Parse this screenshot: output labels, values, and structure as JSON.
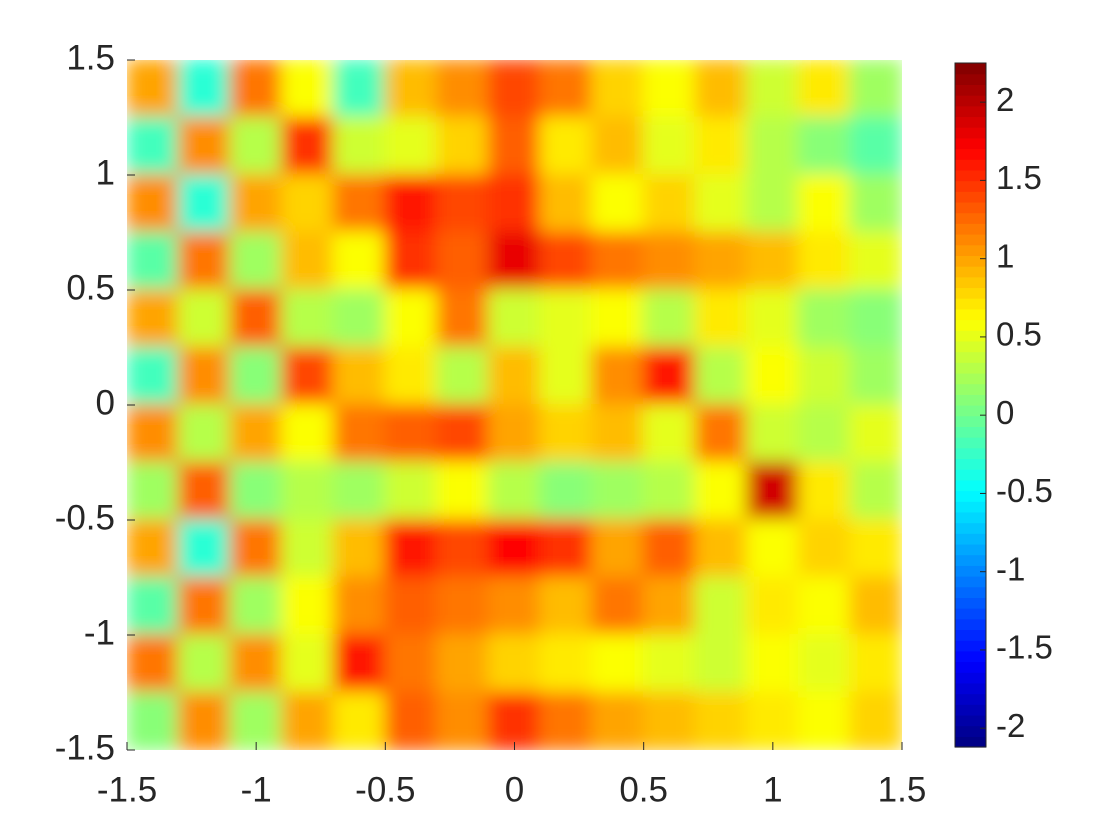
{
  "chart_data": {
    "type": "heatmap",
    "colormap": "jet",
    "x": [
      -1.4,
      -1.2,
      -1.0,
      -0.8,
      -0.6,
      -0.4,
      -0.2,
      0,
      0.2,
      0.4,
      0.6,
      0.8,
      1.0,
      1.2,
      1.4
    ],
    "y": [
      1.375,
      1.125,
      0.875,
      0.625,
      0.375,
      0.125,
      -0.125,
      -0.375,
      -0.625,
      -0.875,
      -1.125,
      -1.375
    ],
    "z": [
      [
        1.0,
        -0.3,
        1.2,
        0.6,
        -0.2,
        0.9,
        1.1,
        1.4,
        1.2,
        0.8,
        0.6,
        0.9,
        0.4,
        0.7,
        0.2
      ],
      [
        -0.2,
        1.1,
        0.3,
        1.5,
        0.4,
        0.5,
        0.8,
        1.3,
        0.7,
        0.9,
        0.5,
        0.7,
        0.3,
        0.1,
        -0.1
      ],
      [
        1.1,
        -0.3,
        1.0,
        0.8,
        1.2,
        1.6,
        1.4,
        1.5,
        0.9,
        0.6,
        0.8,
        0.5,
        0.3,
        0.6,
        0.2
      ],
      [
        -0.1,
        1.2,
        0.2,
        0.9,
        0.6,
        1.5,
        1.3,
        1.8,
        1.4,
        1.2,
        1.1,
        1.0,
        0.9,
        0.7,
        0.5
      ],
      [
        1.0,
        0.4,
        1.3,
        0.3,
        0.2,
        0.6,
        1.2,
        0.4,
        0.5,
        0.6,
        0.3,
        0.7,
        0.5,
        0.2,
        0.1
      ],
      [
        -0.2,
        1.1,
        0.1,
        1.4,
        0.9,
        0.7,
        0.3,
        0.9,
        0.5,
        1.1,
        1.6,
        0.3,
        0.6,
        0.4,
        0.2
      ],
      [
        1.1,
        0.3,
        1.0,
        0.6,
        1.2,
        1.3,
        1.4,
        1.0,
        0.8,
        0.9,
        0.5,
        1.2,
        0.4,
        0.3,
        0.5
      ],
      [
        0.2,
        1.3,
        0.1,
        0.3,
        0.2,
        0.4,
        0.6,
        0.3,
        0.1,
        0.2,
        0.3,
        0.6,
        1.9,
        0.7,
        0.3
      ],
      [
        1.0,
        -0.3,
        1.2,
        0.4,
        0.9,
        1.6,
        1.4,
        1.7,
        1.5,
        1.0,
        1.3,
        0.9,
        0.6,
        0.8,
        0.7
      ],
      [
        -0.1,
        1.2,
        0.2,
        0.6,
        1.1,
        1.3,
        1.2,
        1.1,
        0.9,
        1.2,
        1.0,
        0.4,
        0.7,
        0.6,
        0.9
      ],
      [
        1.2,
        0.3,
        1.1,
        0.5,
        1.6,
        1.2,
        1.0,
        0.8,
        0.7,
        0.6,
        0.5,
        0.4,
        0.6,
        0.5,
        0.7
      ],
      [
        0.1,
        1.1,
        0.2,
        1.0,
        0.7,
        1.3,
        1.1,
        1.5,
        1.2,
        1.0,
        0.9,
        0.8,
        0.7,
        0.6,
        0.8
      ]
    ],
    "xlim": [
      -1.5,
      1.5
    ],
    "ylim": [
      -1.5,
      1.5
    ],
    "xticks": [
      -1.5,
      -1,
      -0.5,
      0,
      0.5,
      1,
      1.5
    ],
    "yticks": [
      -1.5,
      -1,
      -0.5,
      0,
      0.5,
      1,
      1.5
    ],
    "clim": [
      -2.12,
      2.25
    ],
    "cticks": [
      -2,
      -1.5,
      -1,
      -0.5,
      0,
      0.5,
      1,
      1.5,
      2
    ]
  }
}
